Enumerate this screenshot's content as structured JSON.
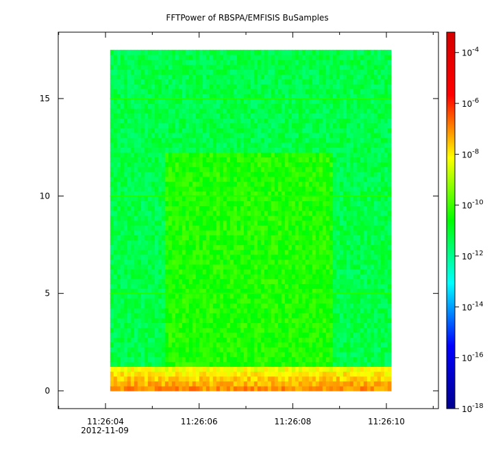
{
  "chart_data": {
    "type": "heatmap",
    "title": "FFTPower of RBSPA/EMFISIS  BuSamples",
    "xlabel": "",
    "ylabel": "",
    "x_range_seconds": [
      4.0,
      10.0
    ],
    "ylim": [
      -0.8,
      18.3
    ],
    "x_ticks": [
      {
        "label": "11:26:04",
        "value": 4.0
      },
      {
        "label": "11:26:06",
        "value": 6.0
      },
      {
        "label": "11:26:08",
        "value": 8.0
      },
      {
        "label": "11:26:10",
        "value": 10.0
      }
    ],
    "x_sub_label": "2012-11-09",
    "y_ticks": [
      {
        "label": "0",
        "value": 0
      },
      {
        "label": "5",
        "value": 5
      },
      {
        "label": "10",
        "value": 10
      },
      {
        "label": "15",
        "value": 15
      }
    ],
    "data_extent": {
      "x": [
        4.1,
        10.1
      ],
      "y": [
        0,
        17.5
      ]
    },
    "active_block": {
      "x": [
        5.2,
        8.8
      ],
      "y": [
        0,
        12.2
      ],
      "log_power": -10.3
    },
    "background_log_power": -11.3,
    "low_band_log_power": -8.5,
    "horizontal_lines_y": [
      5,
      10,
      15
    ],
    "colorbar": {
      "scale": "log",
      "log_range": [
        -18,
        -3.2
      ],
      "ticks": [
        {
          "base": "10",
          "exp": "-4"
        },
        {
          "base": "10",
          "exp": "-6"
        },
        {
          "base": "10",
          "exp": "-8"
        },
        {
          "base": "10",
          "exp": "-10"
        },
        {
          "base": "10",
          "exp": "-12"
        },
        {
          "base": "10",
          "exp": "-14"
        },
        {
          "base": "10",
          "exp": "-16"
        },
        {
          "base": "10",
          "exp": "-18"
        }
      ],
      "colors": [
        "#00008f",
        "#0000ff",
        "#00ffff",
        "#00ff00",
        "#ffff00",
        "#ff0000",
        "#d40000"
      ]
    },
    "grid": false,
    "legend": "none"
  }
}
